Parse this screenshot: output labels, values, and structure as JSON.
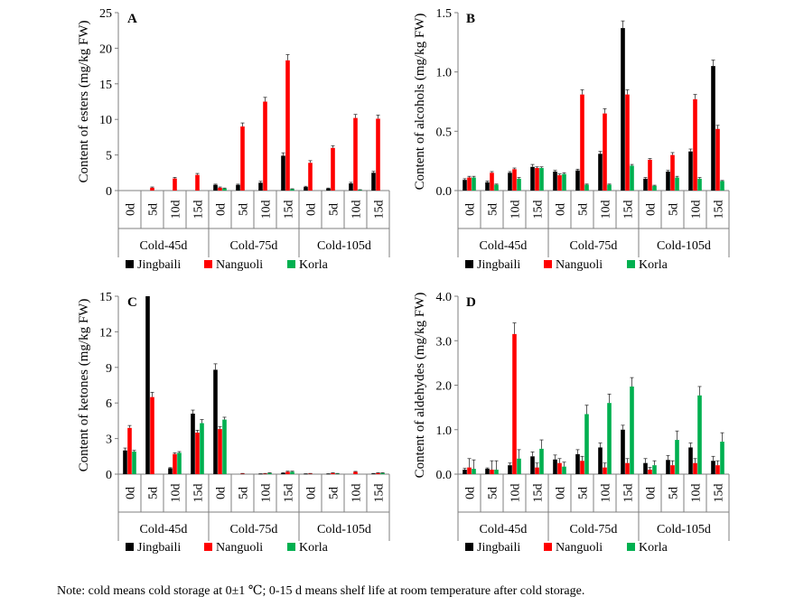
{
  "note": "Note: cold means cold storage at 0±1 ℃; 0-15 d means shelf life at room temperature after cold storage.",
  "colors": {
    "Jingbaili": "#000000",
    "Nanguoli": "#ff0000",
    "Korla": "#00b050"
  },
  "chart_data": [
    {
      "type": "bar",
      "panel": "A",
      "ylabel": "Content of esters (mg/kg FW)",
      "ylim": [
        0,
        25
      ],
      "yticks": [
        "0",
        "5",
        "10",
        "15",
        "20",
        "25"
      ],
      "ytick_values": [
        0,
        5,
        10,
        15,
        20,
        25
      ],
      "groups": [
        "Cold-45d",
        "Cold-75d",
        "Cold-105d"
      ],
      "categories": [
        "0d",
        "5d",
        "10d",
        "15d",
        "0d",
        "5d",
        "10d",
        "15d",
        "0d",
        "5d",
        "10d",
        "15d"
      ],
      "legend": [
        "Jingbaili",
        "Nanguoli",
        "Korla"
      ],
      "series": [
        {
          "name": "Jingbaili",
          "values": [
            0,
            0,
            0,
            0,
            0.8,
            0.8,
            1.1,
            4.9,
            0.5,
            0.3,
            1.0,
            2.5
          ],
          "errors": [
            0,
            0,
            0,
            0,
            0.1,
            0.1,
            0.2,
            0.4,
            0.1,
            0.05,
            0.15,
            0.2
          ]
        },
        {
          "name": "Nanguoli",
          "values": [
            0,
            0.4,
            1.7,
            2.2,
            0.4,
            9.0,
            12.5,
            18.3,
            3.9,
            6.0,
            10.2,
            10.1
          ],
          "errors": [
            0,
            0.1,
            0.15,
            0.2,
            0.1,
            0.5,
            0.6,
            0.8,
            0.3,
            0.3,
            0.5,
            0.5
          ]
        },
        {
          "name": "Korla",
          "values": [
            0,
            0,
            0,
            0,
            0.3,
            0,
            0,
            0.2,
            0,
            0,
            0.1,
            0
          ],
          "errors": [
            0,
            0,
            0,
            0,
            0.05,
            0,
            0,
            0.05,
            0,
            0,
            0.02,
            0
          ]
        }
      ]
    },
    {
      "type": "bar",
      "panel": "B",
      "ylabel": "Content of alcohols (mg/kg FW)",
      "ylim": [
        0,
        1.5
      ],
      "yticks": [
        "0.0",
        "0.5",
        "1.0",
        "1.5"
      ],
      "ytick_values": [
        0,
        0.5,
        1.0,
        1.5
      ],
      "groups": [
        "Cold-45d",
        "Cold-75d",
        "Cold-105d"
      ],
      "categories": [
        "0d",
        "5d",
        "10d",
        "15d",
        "0d",
        "5d",
        "10d",
        "15d",
        "0d",
        "5d",
        "10d",
        "15d"
      ],
      "legend": [
        "Jingbaili",
        "Nanguoli",
        "Korla"
      ],
      "series": [
        {
          "name": "Jingbaili",
          "values": [
            0.09,
            0.07,
            0.15,
            0.2,
            0.16,
            0.17,
            0.31,
            1.37,
            0.1,
            0.16,
            0.33,
            1.05
          ],
          "errors": [
            0.01,
            0.01,
            0.01,
            0.02,
            0.01,
            0.01,
            0.02,
            0.06,
            0.01,
            0.01,
            0.02,
            0.05
          ]
        },
        {
          "name": "Nanguoli",
          "values": [
            0.11,
            0.15,
            0.18,
            0.19,
            0.13,
            0.81,
            0.65,
            0.81,
            0.26,
            0.3,
            0.77,
            0.52
          ],
          "errors": [
            0.01,
            0.01,
            0.01,
            0.01,
            0.01,
            0.04,
            0.04,
            0.04,
            0.01,
            0.02,
            0.04,
            0.03
          ]
        },
        {
          "name": "Korla",
          "values": [
            0.11,
            0.05,
            0.1,
            0.19,
            0.14,
            0.05,
            0.05,
            0.21,
            0.04,
            0.11,
            0.1,
            0.08
          ],
          "errors": [
            0.01,
            0.005,
            0.01,
            0.01,
            0.01,
            0.005,
            0.005,
            0.01,
            0.005,
            0.01,
            0.01,
            0.005
          ]
        }
      ]
    },
    {
      "type": "bar",
      "panel": "C",
      "ylabel": "Content of ketones (mg/kg FW)",
      "ylim": [
        0,
        15
      ],
      "yticks": [
        "0",
        "3",
        "6",
        "9",
        "12",
        "15"
      ],
      "ytick_values": [
        0,
        3,
        6,
        9,
        12,
        15
      ],
      "groups": [
        "Cold-45d",
        "Cold-75d",
        "Cold-105d"
      ],
      "categories": [
        "0d",
        "5d",
        "10d",
        "15d",
        "0d",
        "5d",
        "10d",
        "15d",
        "0d",
        "5d",
        "10d",
        "15d"
      ],
      "legend": [
        "Jingbaili",
        "Nanguoli",
        "Korla"
      ],
      "series": [
        {
          "name": "Jingbaili",
          "values": [
            2.0,
            15.0,
            0.5,
            5.1,
            8.8,
            0,
            0.03,
            0.1,
            0.03,
            0.03,
            0,
            0.05
          ],
          "errors": [
            0.2,
            0,
            0.05,
            0.3,
            0.5,
            0,
            0.01,
            0.02,
            0.01,
            0.01,
            0,
            0.01
          ]
        },
        {
          "name": "Nanguoli",
          "values": [
            3.9,
            6.5,
            1.7,
            3.5,
            3.8,
            0.05,
            0.05,
            0.2,
            0.05,
            0.1,
            0.2,
            0.1
          ],
          "errors": [
            0.2,
            0.4,
            0.1,
            0.2,
            0.2,
            0.01,
            0.01,
            0.05,
            0.01,
            0.02,
            0.03,
            0.02
          ]
        },
        {
          "name": "Korla",
          "values": [
            1.9,
            0,
            1.8,
            4.3,
            4.6,
            0,
            0.1,
            0.2,
            0,
            0.05,
            0,
            0.1
          ],
          "errors": [
            0.1,
            0,
            0.1,
            0.3,
            0.2,
            0,
            0.02,
            0.05,
            0,
            0.01,
            0,
            0.02
          ]
        }
      ]
    },
    {
      "type": "bar",
      "panel": "D",
      "ylabel": "Content of aldehydes (mg/kg FW)",
      "ylim": [
        0,
        4.0
      ],
      "yticks": [
        "0.0",
        "1.0",
        "2.0",
        "3.0",
        "4.0"
      ],
      "ytick_values": [
        0,
        1,
        2,
        3,
        4
      ],
      "groups": [
        "Cold-45d",
        "Cold-75d",
        "Cold-105d"
      ],
      "categories": [
        "0d",
        "5d",
        "10d",
        "15d",
        "0d",
        "5d",
        "10d",
        "15d",
        "0d",
        "5d",
        "10d",
        "15d"
      ],
      "legend": [
        "Jingbaili",
        "Nanguoli",
        "Korla"
      ],
      "series": [
        {
          "name": "Jingbaili",
          "values": [
            0.1,
            0.12,
            0.2,
            0.4,
            0.33,
            0.45,
            0.6,
            1.0,
            0.25,
            0.32,
            0.6,
            0.3
          ],
          "errors": [
            0.03,
            0.02,
            0.05,
            0.1,
            0.1,
            0.1,
            0.1,
            0.1,
            0.1,
            0.1,
            0.1,
            0.1
          ]
        },
        {
          "name": "Nanguoli",
          "values": [
            0.15,
            0.1,
            3.15,
            0.15,
            0.25,
            0.3,
            0.15,
            0.25,
            0.1,
            0.2,
            0.25,
            0.2
          ],
          "errors": [
            0.2,
            0.2,
            0.25,
            0.1,
            0.1,
            0.1,
            0.1,
            0.1,
            0.05,
            0.1,
            0.1,
            0.1
          ]
        },
        {
          "name": "Korla",
          "values": [
            0.12,
            0.1,
            0.35,
            0.57,
            0.17,
            1.35,
            1.6,
            1.97,
            0.2,
            0.77,
            1.77,
            0.73
          ],
          "errors": [
            0.2,
            0.2,
            0.2,
            0.2,
            0.1,
            0.2,
            0.2,
            0.2,
            0.1,
            0.2,
            0.2,
            0.2
          ]
        }
      ]
    }
  ]
}
